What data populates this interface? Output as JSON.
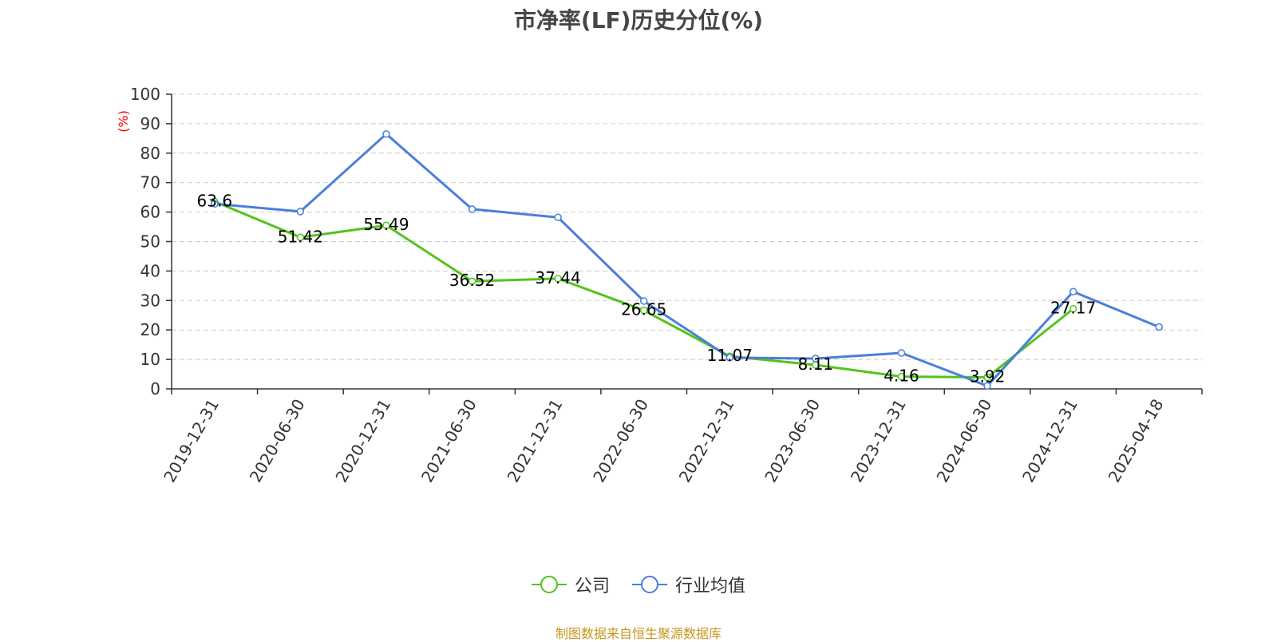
{
  "chart_data": {
    "type": "line",
    "title": "市净率(LF)历史分位(%)",
    "ylabel": "(%)",
    "ylim": [
      0,
      100
    ],
    "yticks": [
      0,
      10,
      20,
      30,
      40,
      50,
      60,
      70,
      80,
      90,
      100
    ],
    "categories": [
      "2019-12-31",
      "2020-06-30",
      "2020-12-31",
      "2021-06-30",
      "2021-12-31",
      "2022-06-30",
      "2022-12-31",
      "2023-06-30",
      "2023-12-31",
      "2024-06-30",
      "2024-12-31",
      "2025-04-18"
    ],
    "grid": true,
    "legend_position": "bottom",
    "series": [
      {
        "name": "公司",
        "color": "#52c41a",
        "values": [
          63.6,
          51.42,
          55.49,
          36.52,
          37.44,
          26.65,
          11.07,
          8.11,
          4.16,
          3.92,
          27.17,
          null
        ],
        "labels": [
          "63.6",
          "51.42",
          "55.49",
          "36.52",
          "37.44",
          "26.65",
          "11.07",
          "8.11",
          "4.16",
          "3.92",
          "27.17",
          null
        ]
      },
      {
        "name": "行业均值",
        "color": "#4a7fdc",
        "values": [
          62.8,
          60.2,
          86.5,
          61.0,
          58.2,
          29.8,
          10.6,
          10.3,
          12.2,
          1.0,
          33.0,
          21.0
        ]
      }
    ]
  },
  "source": "制图数据来自恒生聚源数据库"
}
